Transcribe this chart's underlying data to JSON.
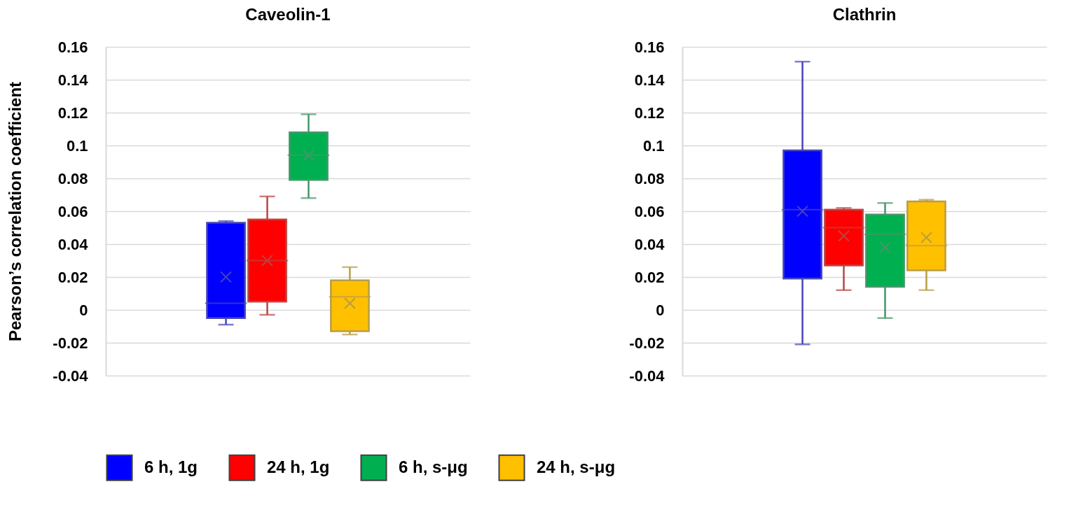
{
  "chart_data": [
    {
      "type": "box",
      "title": "Caveolin-1",
      "ylabel": "Pearson’s correlation coefficient",
      "categories": [
        null
      ],
      "ylim": [
        -0.04,
        0.16
      ],
      "yticks": [
        -0.04,
        -0.02,
        0,
        0.02,
        0.04,
        0.06,
        0.08,
        0.1,
        0.12,
        0.14,
        0.16
      ],
      "grid": "y",
      "legend": "bottom",
      "series": [
        {
          "name": "6 h, 1g",
          "color": "#0000ff",
          "boxes": [
            {
              "low": -0.009,
              "q1": -0.005,
              "median": 0.004,
              "q3": 0.053,
              "high": 0.054,
              "mean": 0.02
            }
          ]
        },
        {
          "name": "24 h, 1g",
          "color": "#ff0000",
          "boxes": [
            {
              "low": -0.003,
              "q1": 0.005,
              "median": 0.03,
              "q3": 0.055,
              "high": 0.069,
              "mean": 0.03
            }
          ]
        },
        {
          "name": "6 h, s-μg",
          "color": "#00b050",
          "boxes": [
            {
              "low": 0.068,
              "q1": 0.079,
              "median": 0.094,
              "q3": 0.108,
              "high": 0.119,
              "mean": 0.094
            }
          ]
        },
        {
          "name": "24 h, s-μg",
          "color": "#ffc000",
          "boxes": [
            {
              "low": -0.015,
              "q1": -0.013,
              "median": 0.008,
              "q3": 0.018,
              "high": 0.026,
              "mean": 0.004
            }
          ]
        }
      ]
    },
    {
      "type": "box",
      "title": "Clathrin",
      "categories": [
        null
      ],
      "ylim": [
        -0.04,
        0.16
      ],
      "yticks": [
        -0.04,
        -0.02,
        0,
        0.02,
        0.04,
        0.06,
        0.08,
        0.1,
        0.12,
        0.14,
        0.16
      ],
      "grid": "y",
      "legend": "bottom",
      "series": [
        {
          "name": "6 h, 1g",
          "color": "#0000ff",
          "boxes": [
            {
              "low": -0.021,
              "q1": 0.019,
              "median": 0.061,
              "q3": 0.097,
              "high": 0.151,
              "mean": 0.06
            }
          ]
        },
        {
          "name": "24 h, 1g",
          "color": "#ff0000",
          "boxes": [
            {
              "low": 0.012,
              "q1": 0.027,
              "median": 0.05,
              "q3": 0.061,
              "high": 0.062,
              "mean": 0.045
            }
          ]
        },
        {
          "name": "6 h, s-μg",
          "color": "#00b050",
          "boxes": [
            {
              "low": -0.005,
              "q1": 0.014,
              "median": 0.046,
              "q3": 0.058,
              "high": 0.065,
              "mean": 0.038
            }
          ]
        },
        {
          "name": "24 h, s-μg",
          "color": "#ffc000",
          "boxes": [
            {
              "low": 0.012,
              "q1": 0.024,
              "median": 0.039,
              "q3": 0.066,
              "high": 0.067,
              "mean": 0.044
            }
          ]
        }
      ]
    }
  ]
}
